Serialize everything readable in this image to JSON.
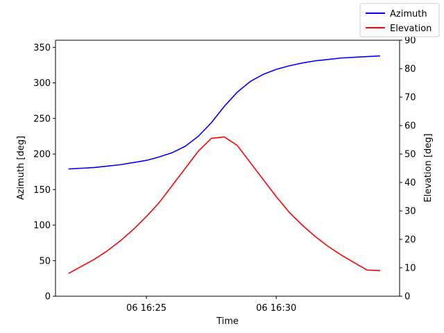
{
  "chart_data": {
    "type": "line",
    "title": "",
    "xlabel": "Time",
    "ylabel_left": "Azimuth [deg]",
    "ylabel_right": "Elevation [deg]",
    "grid": false,
    "legend_placement": "top-right",
    "x_ticks": [
      {
        "time": "16:25",
        "label": "06 16:25"
      },
      {
        "time": "16:30",
        "label": "06 16:30"
      }
    ],
    "xlim": [
      "16:21:30",
      "16:34:45"
    ],
    "ylim_left": [
      0,
      360
    ],
    "ylim_right": [
      0,
      90
    ],
    "yticks_left": [
      "0",
      "50",
      "100",
      "150",
      "200",
      "250",
      "300",
      "350"
    ],
    "yticks_right": [
      "0",
      "10",
      "20",
      "30",
      "40",
      "50",
      "60",
      "70",
      "80",
      "90"
    ],
    "x": [
      "16:22:00",
      "16:22:30",
      "16:23:00",
      "16:23:30",
      "16:24:00",
      "16:24:30",
      "16:25:00",
      "16:25:30",
      "16:26:00",
      "16:26:30",
      "16:27:00",
      "16:27:30",
      "16:28:00",
      "16:28:30",
      "16:29:00",
      "16:29:30",
      "16:30:00",
      "16:30:30",
      "16:31:00",
      "16:31:30",
      "16:32:00",
      "16:32:30",
      "16:33:00",
      "16:33:30",
      "16:34:00"
    ],
    "series": [
      {
        "name": "Azimuth",
        "axis": "left",
        "color": "#0000ff",
        "values": [
          179,
          180,
          181,
          183,
          185,
          188,
          191,
          196,
          202,
          211,
          225,
          244,
          267,
          287,
          302,
          312,
          319,
          324,
          328,
          331,
          333,
          335,
          336,
          337,
          338
        ]
      },
      {
        "name": "Elevation",
        "axis": "right",
        "color": "#ff0000",
        "values": [
          8,
          10.5,
          13,
          16,
          19.5,
          23.5,
          28,
          33,
          39,
          45,
          51,
          55.5,
          56,
          53,
          47,
          41,
          35,
          29.5,
          25,
          21,
          17.5,
          14.5,
          11.8,
          9.2,
          9
        ]
      }
    ]
  }
}
